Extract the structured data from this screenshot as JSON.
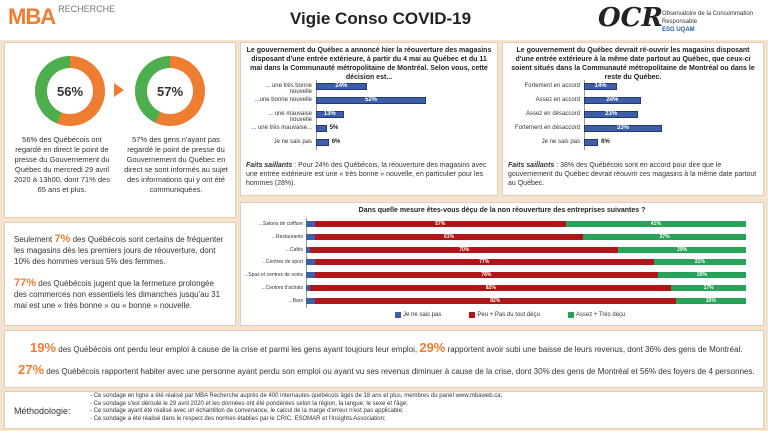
{
  "header": {
    "logo_main": "MBA",
    "logo_sub": "RECHERCHE",
    "title": "Vigie Conso COVID-19",
    "ocr": "OCR",
    "ocr_line1": "Observatoire de la Consommation Responsable",
    "ocr_line2": "ESG UQAM"
  },
  "donuts": [
    {
      "pct": 56,
      "label": "56%",
      "text": "56% des Québécois ont regardé en direct le point de presse du Gouvernement du Québec du mercredi 29 avril 2020 à 13h00, dont 71% des 65 ans et plus."
    },
    {
      "pct": 57,
      "label": "57%",
      "text": "57% des gens n'ayant pas regardé le point de presse du Gouvernement du Québec en direct se sont informés au sujet des informations qui y ont été communiquées."
    }
  ],
  "colors": {
    "orange": "#ee7d31",
    "green": "#4cae4c",
    "navy": "#3f5ea8",
    "red": "#b0151a",
    "teal": "#2aa35a"
  },
  "stats_box": {
    "p1_big": "7%",
    "p1_pre": "Seulement ",
    "p1_text": " des Québécois sont certains de fréquenter les magasins dès les premiers jours de réouverture, dont 10% des hommes versus 5% des femmes.",
    "p2_big": "77%",
    "p2_text": " des Québécois jugent que la fermeture prolongée des commerces non essentiels les dimanches jusqu'au 31 mai est une « très bonne » ou « bonne » nouvelle."
  },
  "chart_data": [
    {
      "type": "bar",
      "title": "Le gouvernement du Québec a annoncé hier la réouverture des magasins disposant d'une entrée extérieure, à partir du 4 mai au Québec et du 11 mai dans la Communauté métropolitaine de Montréal. Selon vous, cette décision est...",
      "categories": [
        "... une très bonne nouvelle",
        "...une bonne nouvelle",
        "... une mauvaise nouvelle",
        "... une très mauvaise...",
        "Je ne sais pas"
      ],
      "values": [
        24,
        52,
        13,
        5,
        6
      ],
      "labels": [
        "24%",
        "52%",
        "13%",
        "5%",
        "6%"
      ],
      "note_bold": "Faits saillants",
      "note": " : Pour 24% des Québécois, la réouverture des magasins avec une entrée extérieure est une « très bonne » nouvelle, en particulier pour les hommes (28%)."
    },
    {
      "type": "bar",
      "title": "Le gouvernement du Québec devrait ré-ouvrir les magasins disposant d'une entrée extérieure à la même date partout au Québec, que ceux-ci soient situés dans la Communauté métropolitaine de Montréal ou dans le reste du Québec.",
      "categories": [
        "Fortement en accord",
        "Assez en accord",
        "Assez en désaccord",
        "Fortement en désaccord",
        "Je ne sais pas"
      ],
      "values": [
        14,
        24,
        23,
        33,
        6
      ],
      "labels": [
        "14%",
        "24%",
        "23%",
        "33%",
        "6%"
      ],
      "note_bold": "Faits saillants",
      "note": " : 38% des Québécois sont en accord pour dire que le gouvernement du Québec devrait réouvrir ces magasins à la même date partout au Québec."
    },
    {
      "type": "bar",
      "title": "Dans quelle mesure êtes-vous déçu de la non réouverture des entreprises suivantes ?",
      "categories": [
        "...Salons de coiffure",
        "...Restaurants",
        "...Cafés",
        "...Centres de sport",
        "...Spas et centres de soins",
        "...Centres d'achats",
        "...Bars"
      ],
      "series": [
        {
          "name": "Je ne sais pas",
          "values": [
            2,
            2,
            1,
            2,
            2,
            1,
            2
          ]
        },
        {
          "name": "Peu + Pas du tout déçu",
          "values": [
            57,
            61,
            70,
            77,
            78,
            82,
            82
          ],
          "labels": [
            "57%",
            "61%",
            "70%",
            "77%",
            "78%",
            "82%",
            "82%"
          ]
        },
        {
          "name": "Assez + Très déçu",
          "values": [
            41,
            37,
            29,
            21,
            20,
            17,
            16
          ],
          "labels": [
            "41%",
            "37%",
            "29%",
            "21%",
            "20%",
            "17%",
            "16%"
          ]
        }
      ]
    }
  ],
  "bottom": {
    "l1_big": "19%",
    "l1_a": " des Québécois ont perdu leur emploi à cause de la crise et parmi les gens ayant toujours leur emploi, ",
    "l1_big2": "29%",
    "l1_b": " rapportent avoir subi une baisse de leurs revenus, dont 36% des gens de Montréal.",
    "l2_big": "27%",
    "l2_a": " des Québécois rapportent habiter avec une personne ayant perdu son emploi ou ayant vu ses revenus diminuer à cause de la crise, dont 30% des gens de Montréal et 56% des foyers de 4 personnes."
  },
  "methodology": {
    "label": "Méthodologie:",
    "items": [
      "Ce sondage en ligne a été réalisé par MBA Recherche auprès de 400 internautes québécois âgés de 18 ans et plus, membres du panel www.mbaweb.ca;",
      "Ce sondage s'est déroulé le 29 avril 2020 et les données ont été pondérées selon la région, la langue, le sexe et l'âge;",
      "Ce sondage ayant été réalisé avec un échantillon de convenance, le calcul de la marge d'erreur n'est pas applicable;",
      "Ce sondage a été réalisé dans le respect des normes établies par le CRIC, ESOMAR et l'Insights Association;"
    ]
  }
}
